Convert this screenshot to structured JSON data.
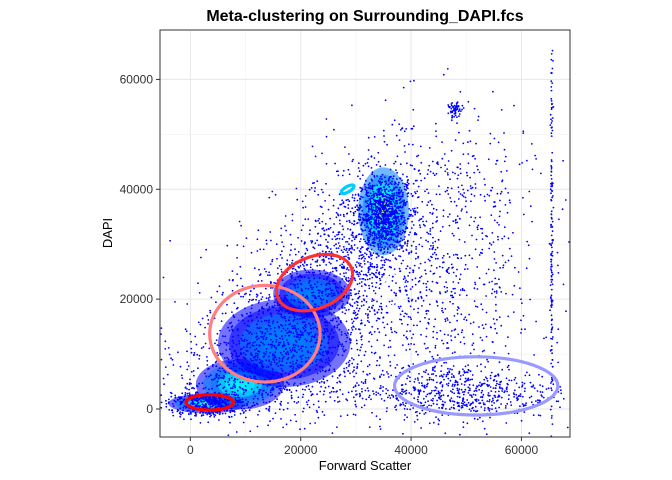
{
  "chart_data": {
    "type": "scatter",
    "title": "Meta-clustering on Surrounding_DAPI.fcs",
    "xlabel": "Forward Scatter",
    "ylabel": "DAPI",
    "xlim": [
      -5500,
      68800
    ],
    "ylim": [
      -5100,
      69000
    ],
    "x_ticks": [
      {
        "value": 0,
        "label": "0"
      },
      {
        "value": 20000,
        "label": "20000"
      },
      {
        "value": 40000,
        "label": "40000"
      },
      {
        "value": 60000,
        "label": "60000"
      }
    ],
    "y_ticks": [
      {
        "value": 0,
        "label": "0"
      },
      {
        "value": 20000,
        "label": "20000"
      },
      {
        "value": 40000,
        "label": "40000"
      },
      {
        "value": 60000,
        "label": "60000"
      }
    ],
    "grid": true,
    "point_color": "#0000ff",
    "density_colormap": [
      "#0000ff",
      "#0080ff",
      "#00ffff",
      "#80ff80",
      "#ffff00",
      "#ff8000",
      "#ff0000"
    ],
    "density_regions": [
      {
        "x": 35000,
        "y": 35000,
        "sx": 1400,
        "sy": 1500,
        "peak": 1.0
      },
      {
        "x": 35000,
        "y": 36000,
        "sx": 2300,
        "sy": 4000,
        "peak": 0.62
      },
      {
        "x": 3000,
        "y": 1000,
        "sx": 3500,
        "sy": 900,
        "peak": 0.45
      },
      {
        "x": 9000,
        "y": 4500,
        "sx": 4000,
        "sy": 2300,
        "peak": 0.4
      },
      {
        "x": 17000,
        "y": 12000,
        "sx": 6000,
        "sy": 4000,
        "peak": 0.22
      },
      {
        "x": 22000,
        "y": 21000,
        "sx": 3500,
        "sy": 2200,
        "peak": 0.2
      }
    ],
    "point_clusters": [
      {
        "x": 35000,
        "y": 35500,
        "sx": 2200,
        "sy": 3200,
        "n": 900
      },
      {
        "x": 30000,
        "y": 28000,
        "sx": 7000,
        "sy": 7000,
        "n": 700
      },
      {
        "x": 3000,
        "y": 1000,
        "sx": 3500,
        "sy": 1200,
        "n": 500
      },
      {
        "x": 14000,
        "y": 8000,
        "sx": 8000,
        "sy": 5000,
        "n": 900
      },
      {
        "x": 20000,
        "y": 18000,
        "sx": 7000,
        "sy": 6000,
        "n": 700
      },
      {
        "x": 48000,
        "y": 3000,
        "sx": 9000,
        "sy": 2500,
        "n": 600
      },
      {
        "x": 44000,
        "y": 20000,
        "sx": 10000,
        "sy": 12000,
        "n": 700
      },
      {
        "x": 45000,
        "y": 40000,
        "sx": 9000,
        "sy": 8000,
        "n": 300
      },
      {
        "x": 48000,
        "y": 54500,
        "sx": 600,
        "sy": 600,
        "n": 60
      },
      {
        "x": 65500,
        "y": 30000,
        "sx": 120,
        "sy": 18000,
        "n": 160
      }
    ],
    "annotations": [
      {
        "shape": "ellipse",
        "cx": 3500,
        "cy": 1200,
        "rx": 4300,
        "ry": 1400,
        "angle": 0,
        "color": "#ff0000"
      },
      {
        "shape": "ellipse",
        "cx": 13500,
        "cy": 13700,
        "rx": 10000,
        "ry": 8800,
        "angle": 0,
        "color": "#ff7f7f"
      },
      {
        "shape": "ellipse",
        "cx": 22500,
        "cy": 23000,
        "rx": 7200,
        "ry": 4700,
        "angle": -22,
        "color": "#ff3030"
      },
      {
        "shape": "ellipse",
        "cx": 36700,
        "cy": 21800,
        "rx": 1800,
        "ry": 3200,
        "angle": 0,
        "color": "#ffffff"
      },
      {
        "shape": "ellipse",
        "cx": 51800,
        "cy": 4200,
        "rx": 14800,
        "ry": 5300,
        "angle": 0,
        "color": "#9999ff"
      },
      {
        "shape": "ellipse",
        "cx": 28500,
        "cy": 40000,
        "rx": 1300,
        "ry": 500,
        "angle": -30,
        "color": "#00ccff"
      }
    ]
  }
}
